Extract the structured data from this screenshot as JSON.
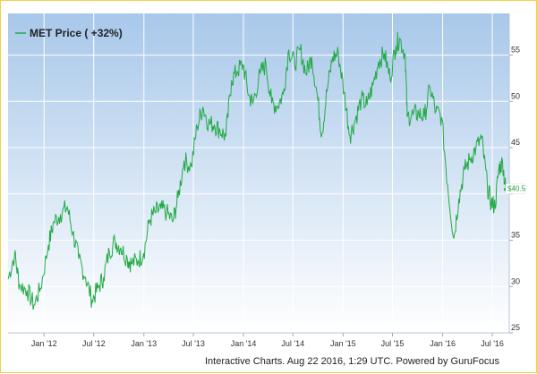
{
  "chart_data": {
    "type": "line",
    "title": "",
    "xlabel": "",
    "ylabel": "",
    "ylim": [
      25,
      59.5
    ],
    "y_ticks": [
      25,
      30,
      35,
      40,
      45,
      50,
      55
    ],
    "x_tick_labels": [
      "Jan '12",
      "Jul '12",
      "Jan '13",
      "Jul '13",
      "Jan '14",
      "Jul '14",
      "Jan '15",
      "Jul '15",
      "Jan '16",
      "Jul '16"
    ],
    "grid": true,
    "legend": {
      "position": "top-left",
      "entries": [
        "MET Price ( +32%)"
      ]
    },
    "series": [
      {
        "name": "MET Price ( +32%)",
        "color": "#22aa44",
        "x": [
          "2011-08-22",
          "2011-09-15",
          "2011-10-03",
          "2011-10-31",
          "2011-11-25",
          "2011-12-19",
          "2012-01-17",
          "2012-02-06",
          "2012-03-01",
          "2012-03-26",
          "2012-04-16",
          "2012-05-07",
          "2012-06-01",
          "2012-06-25",
          "2012-07-16",
          "2012-08-06",
          "2012-08-27",
          "2012-09-17",
          "2012-10-08",
          "2012-11-01",
          "2012-11-16",
          "2012-12-10",
          "2012-12-31",
          "2013-01-22",
          "2013-02-11",
          "2013-03-04",
          "2013-03-25",
          "2013-04-17",
          "2013-05-06",
          "2013-05-28",
          "2013-06-24",
          "2013-07-15",
          "2013-08-05",
          "2013-08-26",
          "2013-09-16",
          "2013-10-07",
          "2013-10-28",
          "2013-11-18",
          "2013-12-09",
          "2013-12-30",
          "2014-01-21",
          "2014-02-04",
          "2014-03-03",
          "2014-03-24",
          "2014-04-14",
          "2014-05-05",
          "2014-05-27",
          "2014-06-16",
          "2014-07-07",
          "2014-07-28",
          "2014-08-18",
          "2014-09-08",
          "2014-09-29",
          "2014-10-15",
          "2014-11-03",
          "2014-11-24",
          "2014-12-15",
          "2015-01-05",
          "2015-01-26",
          "2015-02-16",
          "2015-03-09",
          "2015-03-30",
          "2015-04-20",
          "2015-05-11",
          "2015-06-01",
          "2015-06-22",
          "2015-07-13",
          "2015-07-27",
          "2015-08-17",
          "2015-08-24",
          "2015-09-14",
          "2015-10-05",
          "2015-10-26",
          "2015-11-16",
          "2015-12-07",
          "2015-12-28",
          "2016-01-19",
          "2016-02-11",
          "2016-02-29",
          "2016-03-21",
          "2016-04-11",
          "2016-05-02",
          "2016-05-23",
          "2016-06-13",
          "2016-06-27",
          "2016-07-11",
          "2016-07-25",
          "2016-08-08",
          "2016-08-19"
        ],
        "values": [
          30.8,
          33.5,
          30.2,
          29.6,
          28.0,
          29.8,
          34.5,
          37.0,
          37.8,
          38.6,
          35.8,
          33.0,
          31.0,
          28.5,
          29.8,
          31.0,
          33.8,
          34.9,
          34.2,
          33.0,
          32.5,
          32.8,
          33.6,
          37.2,
          38.0,
          38.4,
          38.0,
          37.0,
          39.6,
          43.6,
          43.0,
          47.3,
          49.4,
          47.6,
          47.5,
          46.9,
          46.2,
          52.3,
          53.3,
          54.0,
          50.6,
          49.8,
          53.0,
          54.0,
          49.8,
          49.5,
          50.8,
          55.6,
          54.0,
          55.6,
          53.0,
          54.8,
          50.5,
          46.4,
          51.1,
          54.8,
          55.1,
          51.0,
          46.3,
          48.1,
          50.2,
          49.6,
          51.7,
          54.3,
          55.2,
          52.5,
          56.0,
          56.8,
          55.0,
          48.3,
          48.6,
          48.7,
          48.3,
          51.5,
          48.9,
          48.3,
          41.0,
          35.2,
          39.5,
          42.6,
          43.8,
          45.0,
          46.0,
          40.8,
          39.0,
          38.7,
          42.8,
          43.4,
          40.5
        ]
      }
    ],
    "last_value_label": "$40.5",
    "credit": "Interactive Charts. Aug 22 2016, 1:29 UTC. Powered by GuruFocus"
  }
}
